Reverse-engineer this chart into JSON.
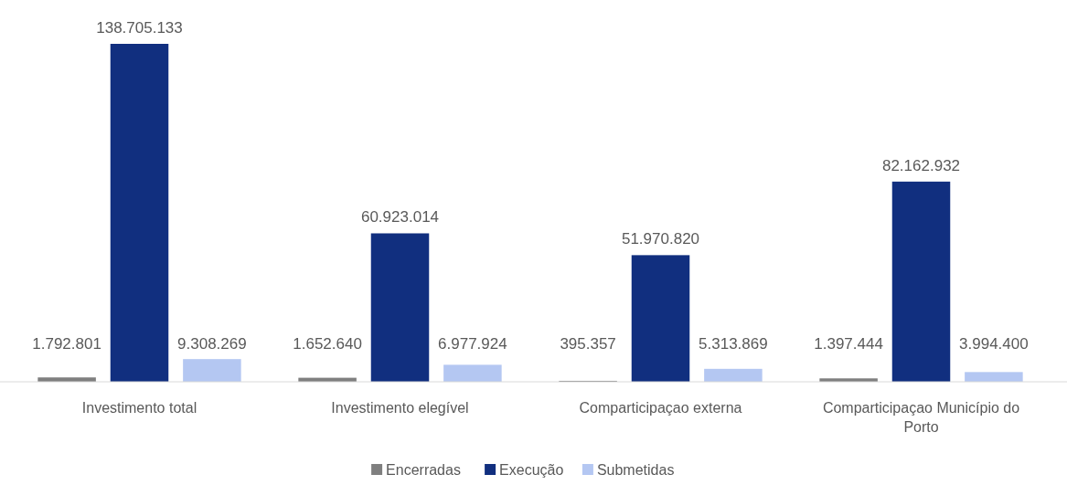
{
  "chart_data": {
    "type": "bar",
    "categories": [
      "Investimento total",
      "Investimento elegível",
      "Comparticipaçao externa",
      "Comparticipaçao Município do Porto"
    ],
    "series": [
      {
        "name": "Encerradas",
        "color": "#7f7f7f",
        "values": [
          1792801,
          1652640,
          395357,
          1397444
        ],
        "value_labels": [
          "1.792.801",
          "1.652.640",
          "395.357",
          "1.397.444"
        ]
      },
      {
        "name": "Execução",
        "color": "#112f7f",
        "values": [
          138705133,
          60923014,
          51970820,
          82162932
        ],
        "value_labels": [
          "138.705.133",
          "60.923.014",
          "51.970.820",
          "82.162.932"
        ]
      },
      {
        "name": "Submetidas",
        "color": "#b4c7f2",
        "values": [
          9308269,
          6977924,
          5313869,
          3994400
        ],
        "value_labels": [
          "9.308.269",
          "6.977.924",
          "5.313.869",
          "3.994.400"
        ]
      }
    ],
    "legend": "bottom"
  }
}
